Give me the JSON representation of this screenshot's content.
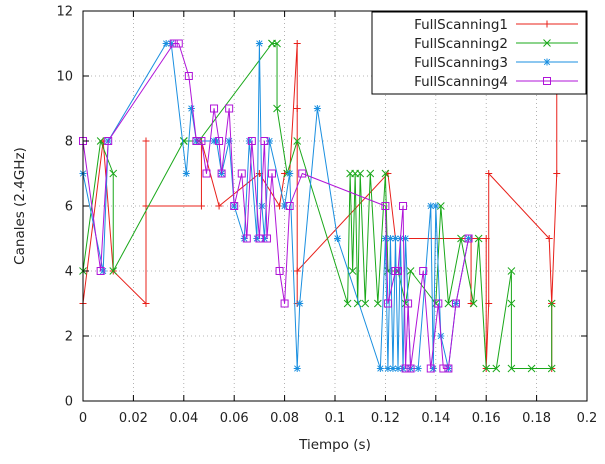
{
  "chart_data": {
    "type": "line",
    "title": "",
    "xlabel": "Tiempo (s)",
    "ylabel": "Canales (2.4GHz)",
    "xlim": [
      0,
      0.2
    ],
    "ylim": [
      0,
      12
    ],
    "xticks": [
      0,
      0.02,
      0.04,
      0.06,
      0.08,
      0.1,
      0.12,
      0.14,
      0.16,
      0.18,
      0.2
    ],
    "yticks": [
      0,
      2,
      4,
      6,
      8,
      10,
      12
    ],
    "grid": true,
    "legend_position": "top-right",
    "series": [
      {
        "name": "FullScanning1",
        "color": "#e8201a",
        "marker": "plus",
        "x": [
          0,
          0.008,
          0.012,
          0.025,
          0.025,
          0.025,
          0.025,
          0.047,
          0.047,
          0.054,
          0.07,
          0.078,
          0.08,
          0.082,
          0.085,
          0.085,
          0.085,
          0.085,
          0.121,
          0.124,
          0.124,
          0.124,
          0.154,
          0.154,
          0.154,
          0.16,
          0.16,
          0.161,
          0.161,
          0.185,
          0.186,
          0.186,
          0.186,
          0.188,
          0.188
        ],
        "y": [
          3,
          8,
          4,
          3,
          6,
          8,
          6,
          6,
          8,
          6,
          7,
          6,
          7,
          7,
          11,
          9,
          3,
          4,
          7,
          5,
          4,
          5,
          5,
          3,
          5,
          5,
          1,
          3,
          7,
          5,
          3,
          1,
          3,
          7,
          11
        ]
      },
      {
        "name": "FullScanning2",
        "color": "#1aa81a",
        "marker": "cross",
        "x": [
          0,
          0.007,
          0.012,
          0.012,
          0.04,
          0.04,
          0.046,
          0.075,
          0.075,
          0.077,
          0.077,
          0.081,
          0.085,
          0.105,
          0.106,
          0.107,
          0.108,
          0.109,
          0.11,
          0.112,
          0.114,
          0.117,
          0.12,
          0.121,
          0.125,
          0.128,
          0.13,
          0.14,
          0.142,
          0.145,
          0.15,
          0.155,
          0.157,
          0.16,
          0.164,
          0.17,
          0.17,
          0.17,
          0.178,
          0.186,
          0.186
        ],
        "y": [
          4,
          8,
          7,
          4,
          8,
          8,
          8,
          11,
          11,
          11,
          9,
          7,
          8,
          3,
          7,
          4,
          7,
          3,
          7,
          3,
          7,
          3,
          7,
          4,
          4,
          3,
          4,
          3,
          6,
          3,
          5,
          3,
          5,
          1,
          1,
          4,
          3,
          1,
          1,
          1,
          3
        ]
      },
      {
        "name": "FullScanning3",
        "color": "#1a8fe0",
        "marker": "star",
        "x": [
          0,
          0.008,
          0.01,
          0.033,
          0.035,
          0.041,
          0.043,
          0.045,
          0.052,
          0.053,
          0.055,
          0.058,
          0.06,
          0.064,
          0.066,
          0.069,
          0.07,
          0.071,
          0.072,
          0.074,
          0.08,
          0.082,
          0.085,
          0.086,
          0.093,
          0.101,
          0.118,
          0.12,
          0.121,
          0.122,
          0.123,
          0.124,
          0.125,
          0.126,
          0.127,
          0.128,
          0.13,
          0.133,
          0.138,
          0.139,
          0.14,
          0.142,
          0.145,
          0.148,
          0.153
        ],
        "y": [
          7,
          4,
          8,
          11,
          11,
          7,
          9,
          8,
          8,
          8,
          7,
          8,
          6,
          5,
          8,
          5,
          11,
          6,
          5,
          8,
          6,
          7,
          1,
          3,
          9,
          5,
          1,
          5,
          1,
          5,
          1,
          5,
          1,
          5,
          1,
          5,
          1,
          1,
          6,
          1,
          6,
          2,
          1,
          3,
          5
        ]
      },
      {
        "name": "FullScanning4",
        "color": "#b014d8",
        "marker": "square",
        "x": [
          0,
          0.007,
          0.01,
          0.036,
          0.038,
          0.042,
          0.045,
          0.047,
          0.049,
          0.052,
          0.054,
          0.055,
          0.058,
          0.06,
          0.063,
          0.065,
          0.067,
          0.07,
          0.072,
          0.073,
          0.075,
          0.078,
          0.08,
          0.082,
          0.087,
          0.12,
          0.121,
          0.124,
          0.125,
          0.127,
          0.128,
          0.129,
          0.13,
          0.135,
          0.138,
          0.141,
          0.143,
          0.145,
          0.148,
          0.153
        ],
        "y": [
          8,
          4,
          8,
          11,
          11,
          10,
          8,
          8,
          7,
          9,
          8,
          7,
          9,
          6,
          7,
          5,
          8,
          5,
          8,
          5,
          7,
          4,
          3,
          6,
          7,
          6,
          3,
          4,
          4,
          6,
          1,
          3,
          1,
          4,
          1,
          3,
          1,
          1,
          3,
          5
        ]
      }
    ]
  }
}
